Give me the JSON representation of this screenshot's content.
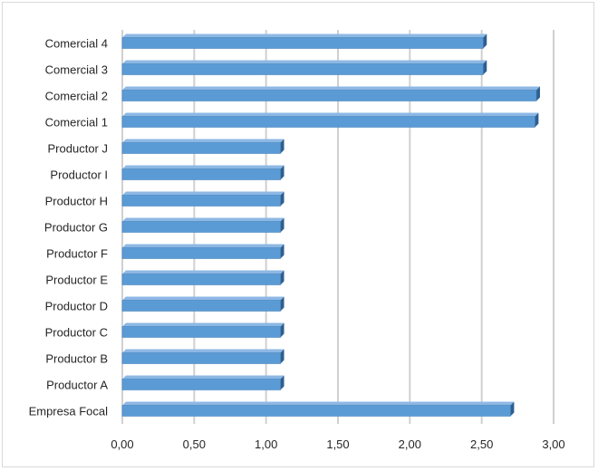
{
  "chart_data": {
    "type": "bar",
    "orientation": "horizontal",
    "style": "3d",
    "categories": [
      "Empresa Focal",
      "Productor A",
      "Productor B",
      "Productor C",
      "Productor D",
      "Productor E",
      "Productor F",
      "Productor G",
      "Productor H",
      "Productor I",
      "Productor J",
      "Comercial 1",
      "Comercial 2",
      "Comercial 3",
      "Comercial 4"
    ],
    "values": [
      2.7,
      1.1,
      1.1,
      1.1,
      1.1,
      1.1,
      1.1,
      1.1,
      1.1,
      1.1,
      1.1,
      2.87,
      2.88,
      2.51,
      2.51
    ],
    "xlim": [
      0,
      3
    ],
    "xticks": [
      "0,00",
      "0,50",
      "1,00",
      "1,50",
      "2,00",
      "2,50",
      "3,00"
    ],
    "xtick_values": [
      0,
      0.5,
      1,
      1.5,
      2,
      2.5,
      3
    ],
    "grid": "vertical",
    "legend": "none",
    "colors": {
      "bar_front": "#5b9bd5",
      "bar_top": "#8db8e4",
      "bar_side": "#2e5f8f",
      "grid": "#d0d0d0",
      "text": "#262626"
    }
  }
}
